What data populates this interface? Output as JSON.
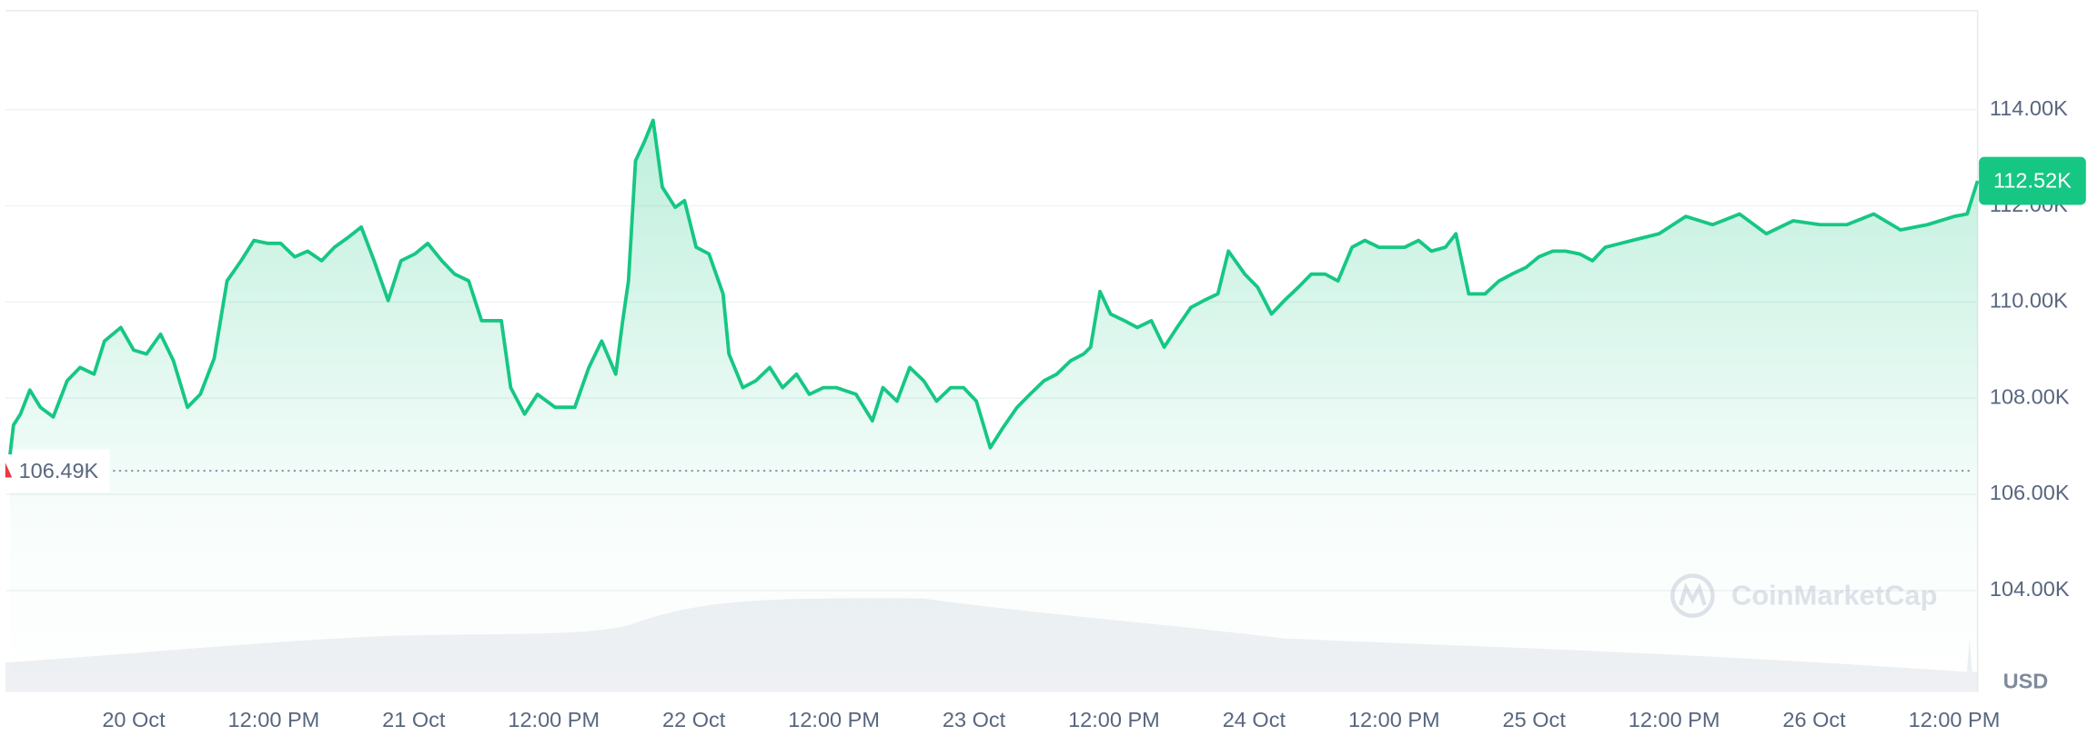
{
  "chart_data": {
    "type": "line",
    "color": "#16c784",
    "x": [
      -10.6,
      -10.3,
      -9.7,
      -8.9,
      -8.0,
      -6.9,
      -5.7,
      -4.6,
      -3.4,
      -2.5,
      -1.1,
      0,
      1.1,
      2.3,
      3.4,
      4.6,
      5.7,
      6.9,
      8.0,
      9.2,
      10.3,
      11.5,
      12.6,
      13.8,
      14.9,
      16.1,
      17.2,
      18.3,
      19.5,
      20.6,
      21.8,
      22.9,
      24.1,
      25.2,
      26.4,
      27.5,
      28.7,
      29.8,
      31.5,
      32.3,
      33.5,
      34.6,
      36.1,
      37.8,
      39.0,
      40.1,
      41.3,
      41.9,
      42.4,
      43.0,
      43.8,
      44.5,
      45.3,
      46.4,
      47.2,
      48.2,
      49.3,
      50.5,
      51.0,
      52.2,
      53.3,
      54.5,
      55.6,
      56.8,
      57.9,
      59.1,
      60.2,
      61.9,
      63.3,
      64.2,
      65.4,
      66.5,
      67.7,
      68.8,
      70.0,
      71.1,
      72.2,
      73.4,
      74.5,
      75.7,
      76.8,
      78.0,
      79.1,
      80.3,
      81.4,
      82.0,
      82.8,
      83.7,
      84.9,
      86.0,
      87.2,
      88.3,
      89.4,
      90.6,
      91.7,
      92.9,
      93.8,
      95.2,
      96.3,
      97.5,
      98.6,
      99.8,
      100.9,
      102.1,
      103.2,
      104.4,
      105.5,
      106.7,
      107.8,
      108.9,
      110.1,
      111.2,
      112.4,
      113.3,
      114.4,
      115.8,
      117.0,
      118.1,
      119.3,
      120.4,
      121.6,
      122.7,
      123.9,
      125.0,
      126.1,
      128.4,
      130.7,
      133.0,
      135.3,
      137.6,
      139.9,
      142.2,
      144.5,
      146.8,
      149.1,
      151.4,
      153.7,
      156.0,
      157.1,
      158.0
    ],
    "values": [
      106.83,
      107.44,
      107.67,
      108.17,
      107.81,
      107.61,
      108.36,
      108.64,
      108.5,
      109.19,
      109.47,
      109.0,
      108.92,
      109.33,
      108.78,
      107.81,
      108.08,
      108.83,
      110.44,
      110.86,
      111.28,
      111.22,
      111.22,
      110.94,
      111.06,
      110.86,
      111.14,
      111.33,
      111.56,
      110.86,
      110.03,
      110.86,
      111.0,
      111.22,
      110.86,
      110.58,
      110.44,
      109.61,
      109.61,
      108.22,
      107.67,
      108.08,
      107.81,
      107.81,
      108.64,
      109.19,
      108.5,
      109.61,
      110.44,
      112.94,
      113.36,
      113.78,
      112.39,
      111.97,
      112.11,
      111.14,
      111.0,
      110.17,
      108.92,
      108.22,
      108.36,
      108.64,
      108.22,
      108.5,
      108.08,
      108.22,
      108.22,
      108.08,
      107.53,
      108.22,
      107.94,
      108.64,
      108.36,
      107.94,
      108.22,
      108.22,
      107.94,
      106.97,
      107.39,
      107.81,
      108.08,
      108.36,
      108.5,
      108.78,
      108.92,
      109.06,
      110.22,
      109.75,
      109.61,
      109.47,
      109.61,
      109.06,
      109.47,
      109.89,
      110.03,
      110.17,
      111.06,
      110.58,
      110.31,
      109.75,
      110.03,
      110.31,
      110.58,
      110.58,
      110.44,
      111.14,
      111.28,
      111.14,
      111.14,
      111.14,
      111.28,
      111.06,
      111.14,
      111.42,
      110.17,
      110.17,
      110.44,
      110.58,
      110.72,
      110.94,
      111.06,
      111.06,
      111.0,
      110.86,
      111.14,
      111.28,
      111.42,
      111.78,
      111.61,
      111.83,
      111.42,
      111.69,
      111.61,
      111.61,
      111.83,
      111.5,
      111.61,
      111.78,
      111.83,
      112.52
    ],
    "xlim": [
      -11,
      158
    ],
    "xticks": [
      {
        "value": 0,
        "label": "20 Oct"
      },
      {
        "value": 12,
        "label": "12:00 PM"
      },
      {
        "value": 24,
        "label": "21 Oct"
      },
      {
        "value": 36,
        "label": "12:00 PM"
      },
      {
        "value": 48,
        "label": "22 Oct"
      },
      {
        "value": 60,
        "label": "12:00 PM"
      },
      {
        "value": 72,
        "label": "23 Oct"
      },
      {
        "value": 84,
        "label": "12:00 PM"
      },
      {
        "value": 96,
        "label": "24 Oct"
      },
      {
        "value": 108,
        "label": "12:00 PM"
      },
      {
        "value": 120,
        "label": "25 Oct"
      },
      {
        "value": 132,
        "label": "12:00 PM"
      },
      {
        "value": 144,
        "label": "26 Oct"
      },
      {
        "value": 156,
        "label": "12:00 PM"
      }
    ],
    "ylim": [
      101.89,
      116.06
    ],
    "yticks": [
      {
        "value": 104,
        "label": "104.00K"
      },
      {
        "value": 106,
        "label": "106.00K"
      },
      {
        "value": 108,
        "label": "108.00K"
      },
      {
        "value": 110,
        "label": "110.00K"
      },
      {
        "value": 112,
        "label": "112.00K"
      },
      {
        "value": 114,
        "label": "114.00K"
      }
    ],
    "grid": true,
    "reference_line": {
      "value": 106.49,
      "label": "106.49K"
    },
    "current_price": {
      "value": 112.52,
      "label": "112.52K"
    },
    "currency_label": "USD",
    "watermark": "CoinMarketCap"
  }
}
